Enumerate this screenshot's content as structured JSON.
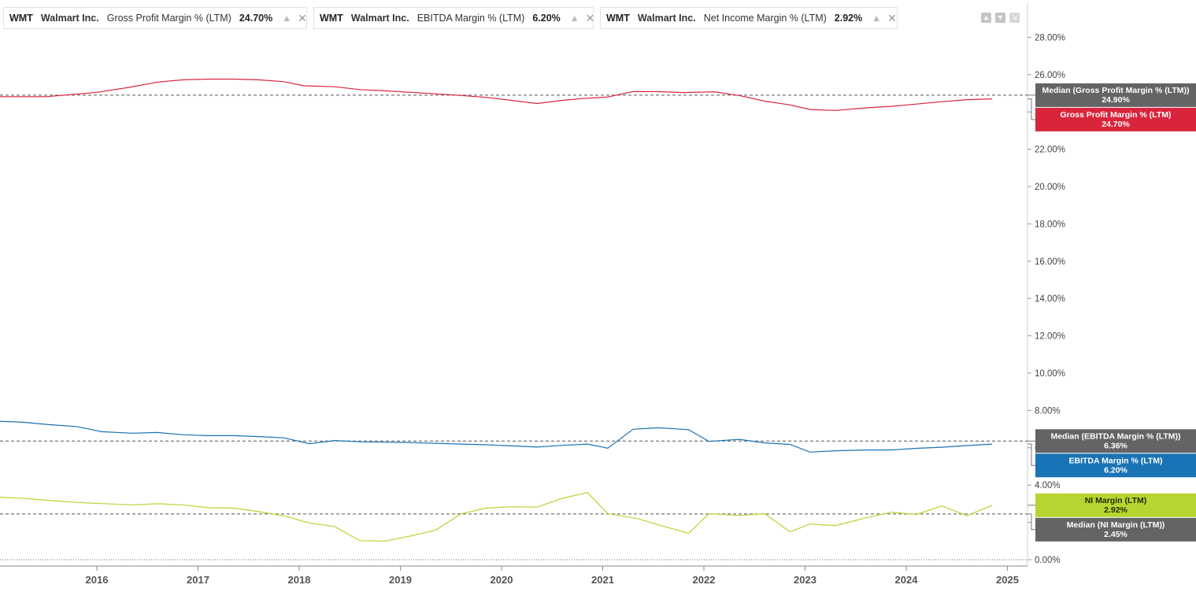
{
  "legend": [
    {
      "ticker": "WMT",
      "company": "Walmart Inc.",
      "metric": "Gross Profit Margin % (LTM)",
      "value": "24.70%",
      "color": "#d9243b"
    },
    {
      "ticker": "WMT",
      "company": "Walmart Inc.",
      "metric": "EBITDA Margin % (LTM)",
      "value": "6.20%",
      "color": "#1a73b4"
    },
    {
      "ticker": "WMT",
      "company": "Walmart Inc.",
      "metric": "Net Income Margin % (LTM)",
      "value": "2.92%",
      "color": "#b5d630"
    }
  ],
  "icons": {
    "chip_settings": "chart-settings-icon",
    "chip_close": "close-icon",
    "window": [
      "move-up-icon",
      "move-down-icon",
      "collapse-icon"
    ]
  },
  "chart_data": {
    "type": "line",
    "x_axis": {
      "ticks": [
        "2016",
        "2017",
        "2018",
        "2019",
        "2020",
        "2021",
        "2022",
        "2023",
        "2024",
        "2025"
      ],
      "range": [
        2015.0,
        2025.2
      ]
    },
    "y_axis": {
      "range": [
        0,
        29.5
      ],
      "ticks": [
        0,
        2,
        4,
        6,
        8,
        10,
        12,
        14,
        16,
        18,
        20,
        22,
        24,
        26,
        28
      ],
      "tick_labels": [
        "0.00%",
        "2.00%",
        "4.00%",
        "6.00%",
        "8.00%",
        "10.00%",
        "12.00%",
        "14.00%",
        "16.00%",
        "18.00%",
        "20.00%",
        "22.00%",
        "24.00%",
        "26.00%",
        "28.00%"
      ],
      "position": "right"
    },
    "grid": false,
    "series": [
      {
        "name": "Gross Profit Margin % (LTM)",
        "color": "#d9243b",
        "points": [
          [
            2015.0,
            24.82
          ],
          [
            2015.5,
            24.82
          ],
          [
            2016.0,
            25.05
          ],
          [
            2016.3,
            25.3
          ],
          [
            2016.6,
            25.6
          ],
          [
            2016.85,
            25.72
          ],
          [
            2017.1,
            25.76
          ],
          [
            2017.35,
            25.76
          ],
          [
            2017.6,
            25.72
          ],
          [
            2017.85,
            25.62
          ],
          [
            2018.05,
            25.4
          ],
          [
            2018.35,
            25.35
          ],
          [
            2018.6,
            25.2
          ],
          [
            2018.85,
            25.13
          ],
          [
            2019.1,
            25.05
          ],
          [
            2019.35,
            24.97
          ],
          [
            2019.6,
            24.88
          ],
          [
            2019.85,
            24.78
          ],
          [
            2020.1,
            24.62
          ],
          [
            2020.35,
            24.45
          ],
          [
            2020.6,
            24.62
          ],
          [
            2020.85,
            24.74
          ],
          [
            2021.05,
            24.8
          ],
          [
            2021.3,
            25.09
          ],
          [
            2021.55,
            25.09
          ],
          [
            2021.8,
            25.04
          ],
          [
            2022.1,
            25.08
          ],
          [
            2022.35,
            24.88
          ],
          [
            2022.6,
            24.58
          ],
          [
            2022.85,
            24.38
          ],
          [
            2023.05,
            24.13
          ],
          [
            2023.3,
            24.08
          ],
          [
            2023.6,
            24.22
          ],
          [
            2023.85,
            24.3
          ],
          [
            2024.1,
            24.42
          ],
          [
            2024.35,
            24.55
          ],
          [
            2024.6,
            24.66
          ],
          [
            2024.85,
            24.7
          ]
        ],
        "median": 24.9,
        "tag": {
          "title": "Gross Profit Margin % (LTM)",
          "value": "24.70%"
        },
        "median_tag": {
          "title": "Median (Gross Profit Margin % (LTM))",
          "value": "24.90%"
        }
      },
      {
        "name": "EBITDA Margin % (LTM)",
        "color": "#1a73b4",
        "points": [
          [
            2015.0,
            7.42
          ],
          [
            2015.25,
            7.38
          ],
          [
            2015.55,
            7.23
          ],
          [
            2015.8,
            7.14
          ],
          [
            2016.05,
            6.86
          ],
          [
            2016.35,
            6.78
          ],
          [
            2016.6,
            6.82
          ],
          [
            2016.85,
            6.7
          ],
          [
            2017.1,
            6.65
          ],
          [
            2017.35,
            6.65
          ],
          [
            2017.6,
            6.6
          ],
          [
            2017.85,
            6.53
          ],
          [
            2018.1,
            6.22
          ],
          [
            2018.35,
            6.39
          ],
          [
            2018.6,
            6.32
          ],
          [
            2018.85,
            6.3
          ],
          [
            2019.1,
            6.28
          ],
          [
            2019.35,
            6.24
          ],
          [
            2019.6,
            6.2
          ],
          [
            2019.85,
            6.16
          ],
          [
            2020.1,
            6.1
          ],
          [
            2020.35,
            6.04
          ],
          [
            2020.6,
            6.13
          ],
          [
            2020.85,
            6.2
          ],
          [
            2021.05,
            5.98
          ],
          [
            2021.3,
            6.99
          ],
          [
            2021.55,
            7.07
          ],
          [
            2021.85,
            6.97
          ],
          [
            2022.05,
            6.34
          ],
          [
            2022.35,
            6.45
          ],
          [
            2022.6,
            6.26
          ],
          [
            2022.85,
            6.18
          ],
          [
            2023.05,
            5.77
          ],
          [
            2023.3,
            5.84
          ],
          [
            2023.6,
            5.88
          ],
          [
            2023.85,
            5.88
          ],
          [
            2024.1,
            5.97
          ],
          [
            2024.35,
            6.03
          ],
          [
            2024.6,
            6.12
          ],
          [
            2024.85,
            6.2
          ]
        ],
        "median": 6.36,
        "tag": {
          "title": "EBITDA Margin % (LTM)",
          "value": "6.20%"
        },
        "median_tag": {
          "title": "Median (EBITDA Margin % (LTM))",
          "value": "6.36%"
        }
      },
      {
        "name": "Net Income Margin % (LTM)",
        "color": "#b5d630",
        "points": [
          [
            2015.0,
            3.36
          ],
          [
            2015.25,
            3.3
          ],
          [
            2015.55,
            3.17
          ],
          [
            2015.8,
            3.07
          ],
          [
            2016.05,
            3.01
          ],
          [
            2016.35,
            2.94
          ],
          [
            2016.6,
            3.0
          ],
          [
            2016.85,
            2.94
          ],
          [
            2017.1,
            2.79
          ],
          [
            2017.35,
            2.77
          ],
          [
            2017.6,
            2.58
          ],
          [
            2017.85,
            2.35
          ],
          [
            2018.1,
            1.97
          ],
          [
            2018.35,
            1.78
          ],
          [
            2018.6,
            1.02
          ],
          [
            2018.85,
            1.0
          ],
          [
            2019.1,
            1.27
          ],
          [
            2019.35,
            1.59
          ],
          [
            2019.6,
            2.46
          ],
          [
            2019.85,
            2.77
          ],
          [
            2020.1,
            2.84
          ],
          [
            2020.35,
            2.82
          ],
          [
            2020.6,
            3.29
          ],
          [
            2020.85,
            3.6
          ],
          [
            2021.05,
            2.47
          ],
          [
            2021.35,
            2.2
          ],
          [
            2021.6,
            1.79
          ],
          [
            2021.85,
            1.42
          ],
          [
            2022.05,
            2.47
          ],
          [
            2022.35,
            2.37
          ],
          [
            2022.6,
            2.47
          ],
          [
            2022.85,
            1.5
          ],
          [
            2023.05,
            1.91
          ],
          [
            2023.3,
            1.83
          ],
          [
            2023.6,
            2.24
          ],
          [
            2023.85,
            2.55
          ],
          [
            2024.1,
            2.42
          ],
          [
            2024.35,
            2.88
          ],
          [
            2024.6,
            2.36
          ],
          [
            2024.85,
            2.92
          ]
        ],
        "median": 2.45,
        "tag": {
          "title": "NI Margin (LTM)",
          "value": "2.92%"
        },
        "median_tag": {
          "title": "Median (NI Margin (LTM))",
          "value": "2.45%"
        }
      }
    ],
    "median_line_color": "#555555",
    "median_tag_color": "#636466"
  }
}
